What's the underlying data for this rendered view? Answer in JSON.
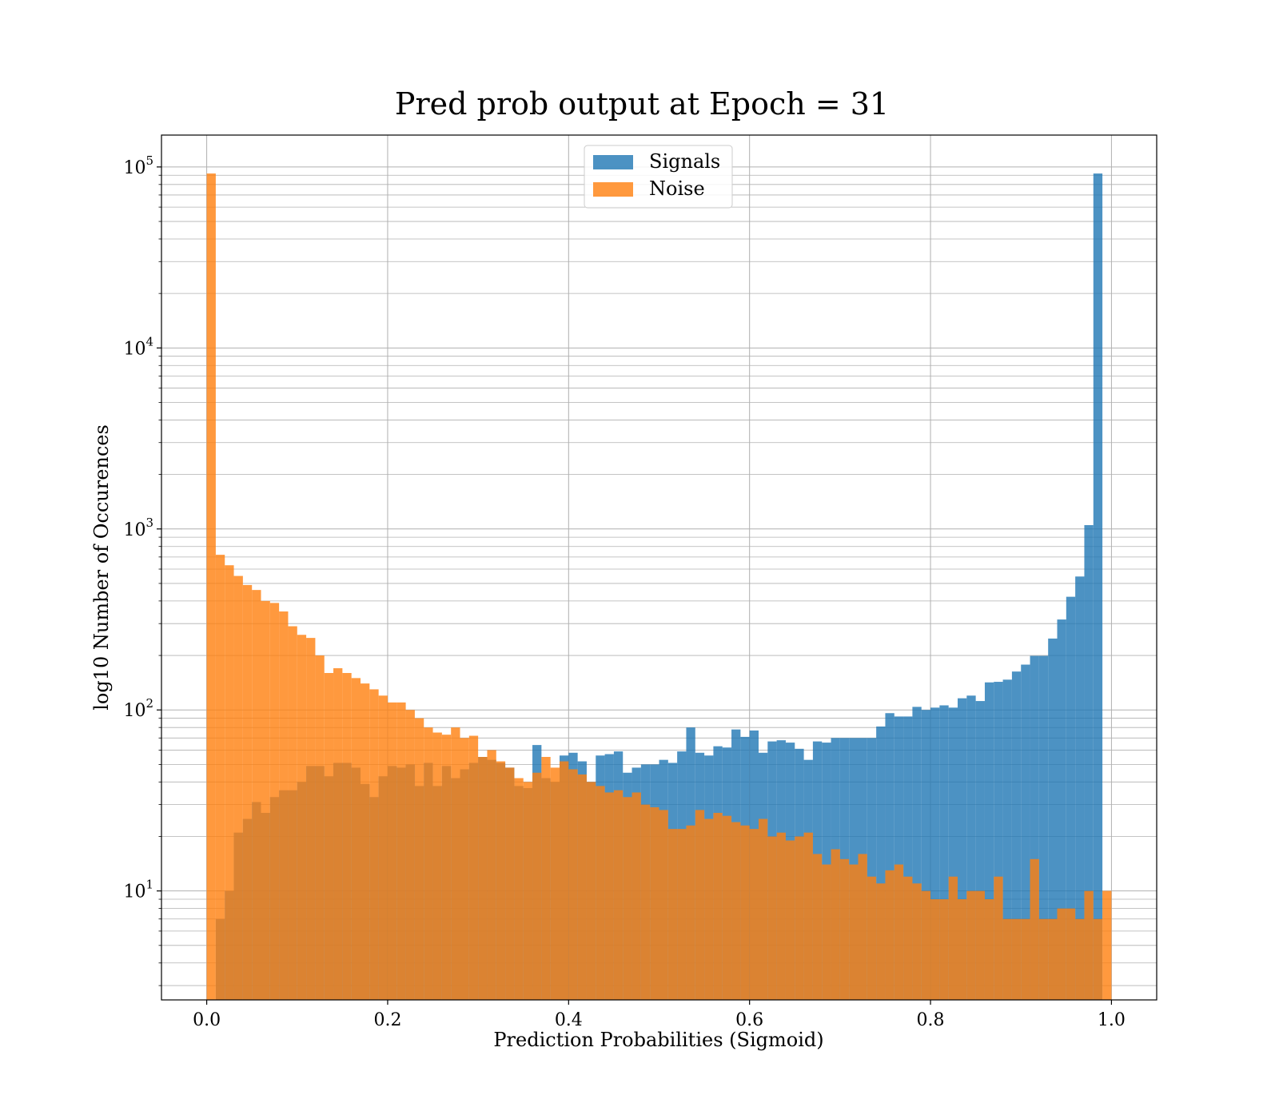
{
  "chart_data": {
    "type": "bar",
    "title": "Pred prob output at Epoch = 31",
    "xlabel": "Prediction Probabilities (Sigmoid)",
    "ylabel": "log10 Number of Occurences",
    "xlim": [
      -0.05,
      1.05
    ],
    "ylim": [
      2.5,
      150000
    ],
    "yscale": "log",
    "grid": true,
    "bins": 100,
    "bin_range": [
      0,
      1
    ],
    "x_ticks": [
      "0.0",
      "0.2",
      "0.4",
      "0.6",
      "0.8",
      "1.0"
    ],
    "x_tick_values": [
      0,
      0.2,
      0.4,
      0.6,
      0.8,
      1.0
    ],
    "y_tick_values": [
      10,
      100,
      1000,
      10000,
      100000
    ],
    "y_ticks": [
      {
        "base": "10",
        "exp": "1"
      },
      {
        "base": "10",
        "exp": "2"
      },
      {
        "base": "10",
        "exp": "3"
      },
      {
        "base": "10",
        "exp": "4"
      },
      {
        "base": "10",
        "exp": "5"
      }
    ],
    "legend_position": "top-center",
    "series": [
      {
        "name": "Signals",
        "color": "#1f77b4",
        "opacity": 0.8,
        "values": [
          0,
          7,
          10,
          21,
          25,
          31,
          27,
          33,
          36,
          36,
          40,
          49,
          49,
          43,
          51,
          51,
          48,
          39,
          33,
          43,
          49,
          48,
          50,
          38,
          51,
          38,
          49,
          42,
          47,
          51,
          55,
          53,
          51,
          48,
          38,
          37,
          64,
          42,
          40,
          56,
          58,
          52,
          40,
          56,
          57,
          59,
          45,
          48,
          50,
          50,
          53,
          51,
          59,
          80,
          58,
          56,
          63,
          62,
          78,
          71,
          77,
          58,
          67,
          68,
          66,
          61,
          53,
          67,
          66,
          70,
          70,
          70,
          70,
          70,
          81,
          96,
          92,
          92,
          104,
          100,
          103,
          106,
          103,
          116,
          120,
          112,
          142,
          143,
          147,
          163,
          178,
          199,
          199,
          248,
          316,
          422,
          546,
          1050,
          92000,
          0
        ]
      },
      {
        "name": "Noise",
        "color": "#ff7f0e",
        "opacity": 0.8,
        "values": [
          92000,
          720,
          630,
          550,
          490,
          460,
          400,
          390,
          350,
          290,
          260,
          250,
          200,
          160,
          170,
          160,
          150,
          140,
          130,
          120,
          110,
          110,
          100,
          90,
          80,
          75,
          73,
          80,
          70,
          72,
          55,
          60,
          52,
          48,
          42,
          40,
          45,
          55,
          48,
          52,
          47,
          44,
          40,
          38,
          35,
          36,
          33,
          35,
          30,
          29,
          28,
          22,
          22,
          23,
          28,
          25,
          27,
          26,
          24,
          23,
          22,
          25,
          20,
          21,
          19,
          20,
          21,
          16,
          14,
          17,
          15,
          14,
          16,
          12,
          11,
          13,
          14,
          12,
          11,
          10,
          9,
          9,
          12,
          9,
          10,
          10,
          9,
          12,
          7,
          7,
          7,
          15,
          7,
          7,
          8,
          8,
          7,
          10,
          7,
          10
        ]
      }
    ]
  }
}
